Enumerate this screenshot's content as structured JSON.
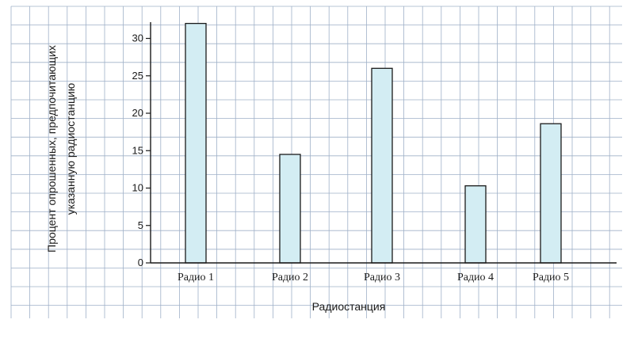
{
  "colors": {
    "grid": "#9fb0c8",
    "bar_fill": "#d3edf3",
    "bar_stroke": "#1a1a1a",
    "axis": "#1a1a1a",
    "background": "#ffffff"
  },
  "chart_data": {
    "type": "bar",
    "title": "",
    "xlabel": "Радиостанция",
    "ylabel_lines": [
      "Процент опрошенных,  предпочитающих",
      "указанную  радиостанцию"
    ],
    "categories": [
      "Радио 1",
      "Радио 2",
      "Радио 3",
      "Радио 4",
      "Радио 5"
    ],
    "values": [
      32,
      14.5,
      26,
      10.3,
      18.6
    ],
    "yticks": [
      "0",
      "5",
      "10",
      "15",
      "20",
      "25",
      "30"
    ],
    "ylim": [
      0,
      33
    ],
    "grid": true,
    "legend": "none"
  }
}
